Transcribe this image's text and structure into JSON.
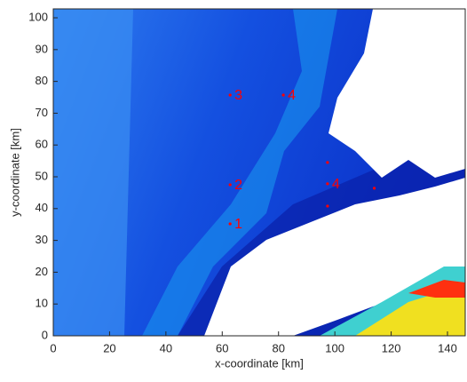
{
  "chart_data": {
    "type": "scatter",
    "xlabel": "x-coordinate [km]",
    "ylabel": "y-coordinate [km]",
    "x": [
      62.8,
      62.8,
      62.8,
      81.7,
      97.4,
      97.4,
      97.4,
      114
    ],
    "values": [
      35.2,
      47.5,
      75.7,
      75.7,
      47.8,
      54.5,
      40.8,
      46.4
    ],
    "labels": [
      "1",
      "2",
      "3",
      "4",
      "4",
      null,
      null,
      null
    ],
    "color": "#ff0000",
    "xlim": [
      0,
      146.3
    ],
    "ylim": [
      0,
      102.8
    ],
    "xticks": [
      0,
      20,
      40,
      60,
      80,
      100,
      120,
      140
    ],
    "yticks": [
      0,
      10,
      20,
      30,
      40,
      50,
      60,
      70,
      80,
      90,
      100
    ]
  }
}
